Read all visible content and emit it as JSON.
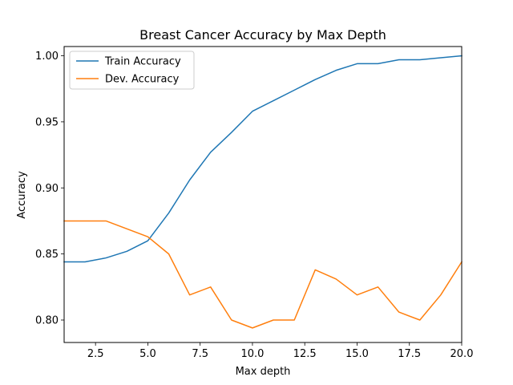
{
  "chart_data": {
    "type": "line",
    "title": "Breast Cancer Accuracy by Max Depth",
    "xlabel": "Max depth",
    "ylabel": "Accuracy",
    "xlim": [
      1,
      20
    ],
    "ylim": [
      0.783,
      1.007
    ],
    "xticks": [
      2.5,
      5.0,
      7.5,
      10.0,
      12.5,
      15.0,
      17.5,
      20.0
    ],
    "xtick_labels": [
      "2.5",
      "5.0",
      "7.5",
      "10.0",
      "12.5",
      "15.0",
      "17.5",
      "20.0"
    ],
    "yticks": [
      0.8,
      0.85,
      0.9,
      0.95,
      1.0
    ],
    "ytick_labels": [
      "0.80",
      "0.85",
      "0.90",
      "0.95",
      "1.00"
    ],
    "grid": false,
    "legend_position": "upper-left",
    "x": [
      1,
      2,
      3,
      4,
      5,
      6,
      7,
      8,
      9,
      10,
      11,
      12,
      13,
      14,
      15,
      16,
      17,
      18,
      19,
      20
    ],
    "series": [
      {
        "name": "Train Accuracy",
        "color": "#1f77b4",
        "values": [
          0.844,
          0.844,
          0.847,
          0.852,
          0.86,
          0.881,
          0.906,
          0.927,
          0.942,
          0.958,
          0.966,
          0.974,
          0.982,
          0.989,
          0.994,
          0.994,
          0.997,
          0.997,
          0.9985,
          1.0
        ]
      },
      {
        "name": "Dev. Accuracy",
        "color": "#ff7f0e",
        "values": [
          0.875,
          0.875,
          0.875,
          0.869,
          0.863,
          0.85,
          0.819,
          0.825,
          0.8,
          0.794,
          0.8,
          0.8,
          0.838,
          0.831,
          0.819,
          0.825,
          0.806,
          0.8,
          0.819,
          0.844
        ]
      }
    ]
  }
}
